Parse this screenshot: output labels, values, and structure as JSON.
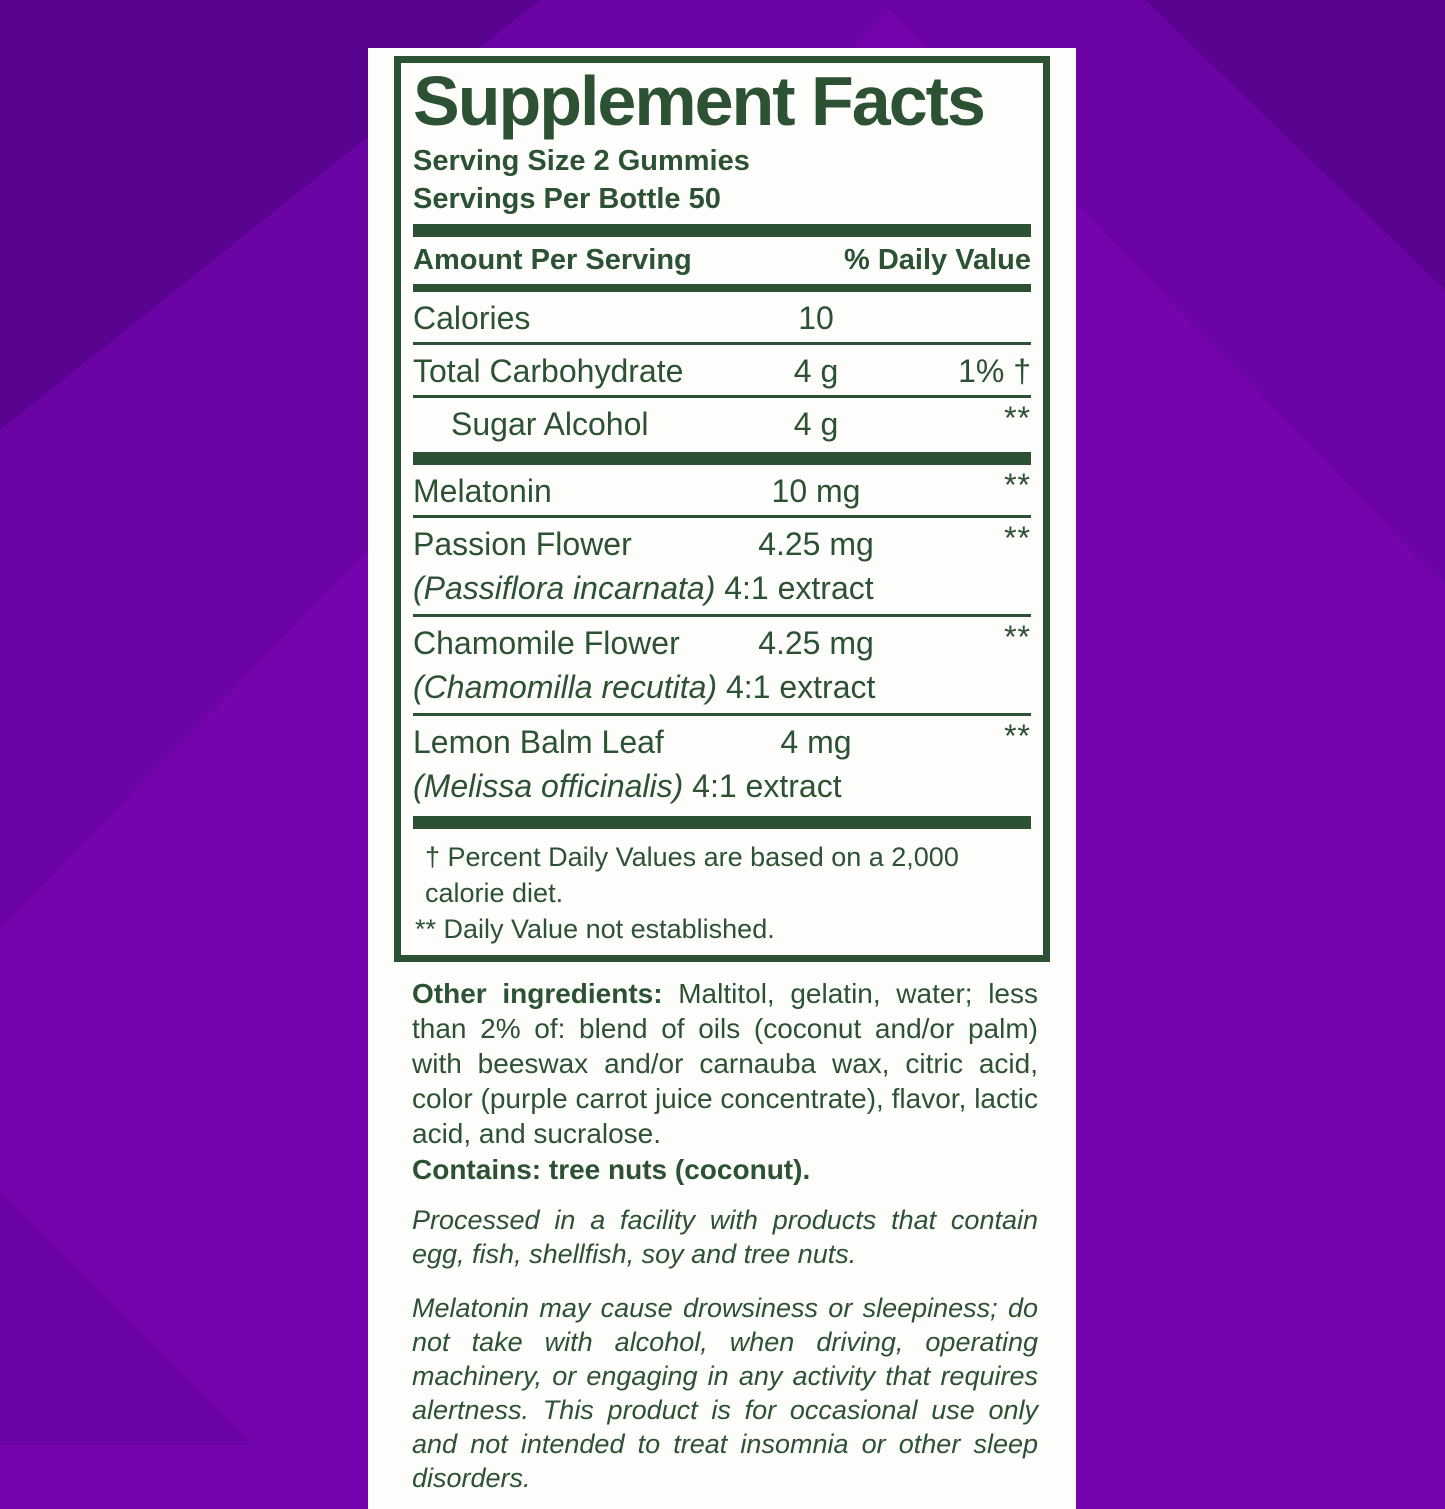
{
  "colors": {
    "label_green": "#2d5133",
    "panel_white": "#fdfdfc",
    "purple_bright": "#7604ae",
    "purple_mid": "#6c03a4",
    "purple_dark": "#590391"
  },
  "label": {
    "title": "Supplement Facts",
    "serving_size": "Serving Size 2 Gummies",
    "servings_per": "Servings Per Bottle 50",
    "table": {
      "header": {
        "amount": "Amount Per Serving",
        "dv": "% Daily Value"
      },
      "rows": [
        {
          "name": "Calories",
          "amount": "10",
          "dv": "",
          "indent": false,
          "sub_italic": "",
          "sub_rest": "",
          "sep_before": "none"
        },
        {
          "name": "Total Carbohydrate",
          "amount": "4 g",
          "dv": "1% †",
          "indent": false,
          "sub_italic": "",
          "sub_rest": "",
          "sep_before": "hairline"
        },
        {
          "name": "Sugar Alcohol",
          "amount": "4 g",
          "dv": "**",
          "indent": true,
          "sub_italic": "",
          "sub_rest": "",
          "sep_before": "hairline"
        },
        {
          "name": "Melatonin",
          "amount": "10 mg",
          "dv": "**",
          "indent": false,
          "sub_italic": "",
          "sub_rest": "",
          "sep_before": "thick"
        },
        {
          "name": "Passion Flower",
          "amount": "4.25 mg",
          "dv": "**",
          "indent": false,
          "sub_italic": "(Passiflora incarnata)",
          "sub_rest": " 4:1 extract",
          "sep_before": "hairline"
        },
        {
          "name": "Chamomile Flower",
          "amount": "4.25 mg",
          "dv": "**",
          "indent": false,
          "sub_italic": "(Chamomilla recutita)",
          "sub_rest": " 4:1 extract",
          "sep_before": "hairline"
        },
        {
          "name": "Lemon Balm Leaf",
          "amount": "4 mg",
          "dv": "**",
          "indent": false,
          "sub_italic": "(Melissa officinalis)",
          "sub_rest": " 4:1 extract",
          "sep_before": "hairline"
        }
      ],
      "footnotes": [
        "† Percent Daily Values are based on a 2,000 calorie diet.",
        "** Daily Value not established."
      ]
    },
    "other_ingredients_label": "Other ingredients:",
    "other_ingredients_text": " Maltitol, gelatin, water; less than 2% of:  blend of oils (coconut and/or palm) with beeswax and/or carnauba wax, citric acid, color (purple carrot juice concentrate), flavor, lactic acid, and sucralose.",
    "contains": "Contains: tree nuts (coconut).",
    "facility_warning": "Processed in a facility with products that contain egg, fish, shellfish, soy and tree nuts.",
    "melatonin_warning": "Melatonin may cause drowsiness or sleepiness; do not take with alcohol, when driving, operating machinery, or engaging in any activity that requires alertness. This product is for occasional use only and not intended to treat insomnia or other sleep disorders."
  }
}
